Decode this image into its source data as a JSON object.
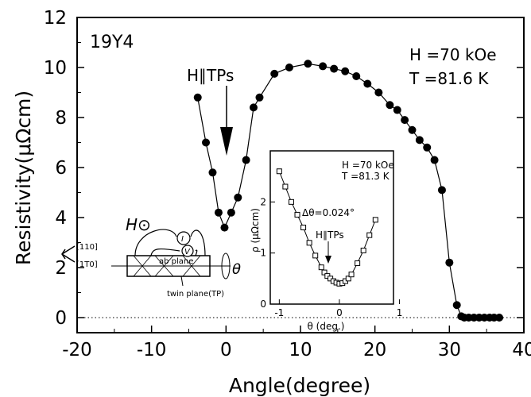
{
  "chart_data": [
    {
      "type": "line",
      "sample_label": "19Y4",
      "xlabel": "Angle(degree)",
      "ylabel": "Resistivity(μΩcm)",
      "xlim": [
        -20,
        40
      ],
      "ylim": [
        0,
        12
      ],
      "x_ticks": [
        "-20",
        "-10",
        "0",
        "10",
        "20",
        "30",
        "40"
      ],
      "y_ticks": [
        "0",
        "2",
        "4",
        "6",
        "8",
        "10",
        "12"
      ],
      "field_label": "H =70 kOe",
      "temp_label": "T =81.6 K",
      "arrow_label": "H∥TPs",
      "baseline": "dotted at 0",
      "series": [
        {
          "marker": "filled-circle",
          "x": [
            -3.8,
            -2.7,
            -1.8,
            -1.0,
            -0.2,
            0.7,
            1.6,
            2.7,
            3.7,
            4.5,
            6.5,
            8.5,
            11.0,
            13.0,
            14.5,
            16.0,
            17.5,
            19.0,
            20.5,
            22.0,
            23.0,
            24.0,
            25.0,
            26.0,
            27.0,
            28.0,
            29.0,
            30.0,
            31.0,
            31.6,
            32.0,
            32.6,
            33.3,
            34.0,
            34.7,
            35.4,
            36.0,
            36.7
          ],
          "y": [
            8.8,
            7.0,
            5.8,
            4.2,
            3.6,
            4.2,
            4.8,
            6.3,
            8.4,
            8.8,
            9.75,
            10.0,
            10.15,
            10.05,
            9.95,
            9.85,
            9.65,
            9.35,
            9.0,
            8.5,
            8.3,
            7.9,
            7.5,
            7.1,
            6.8,
            6.3,
            5.1,
            2.2,
            0.5,
            0.05,
            0.0,
            0.0,
            0.0,
            0.0,
            0.0,
            0.0,
            0.0,
            0.0
          ]
        }
      ]
    },
    {
      "type": "line",
      "xlabel": "θ (deg.)",
      "ylabel": "ρ (μΩcm)",
      "xlim": [
        -1.15,
        0.9
      ],
      "ylim": [
        0,
        3
      ],
      "x_ticks": [
        "-1",
        "0",
        "1"
      ],
      "y_ticks": [
        "0",
        "1",
        "2"
      ],
      "field_label": "H =70 kOe",
      "temp_label": "T =81.3 K",
      "delta_label": "Δθ=0.024°",
      "arrow_label": "H∥TPs",
      "series": [
        {
          "marker": "open-square",
          "x": [
            -1.0,
            -0.9,
            -0.8,
            -0.7,
            -0.6,
            -0.5,
            -0.4,
            -0.3,
            -0.25,
            -0.2,
            -0.15,
            -0.1,
            -0.05,
            0.0,
            0.05,
            0.1,
            0.15,
            0.2,
            0.3,
            0.4,
            0.5,
            0.6
          ],
          "y": [
            2.6,
            2.3,
            2.0,
            1.75,
            1.5,
            1.2,
            0.95,
            0.72,
            0.62,
            0.55,
            0.5,
            0.45,
            0.42,
            0.4,
            0.41,
            0.45,
            0.5,
            0.58,
            0.8,
            1.05,
            1.35,
            1.65
          ]
        }
      ]
    }
  ],
  "schematic": {
    "field_label": "H⊙",
    "dir_1": "[110]",
    "dir_2": "[1T0]",
    "current_label": "I",
    "voltage_label": "V",
    "plane_label": "ab plane",
    "twin_label": "twin plane(TP)",
    "angle_label": "θ"
  }
}
